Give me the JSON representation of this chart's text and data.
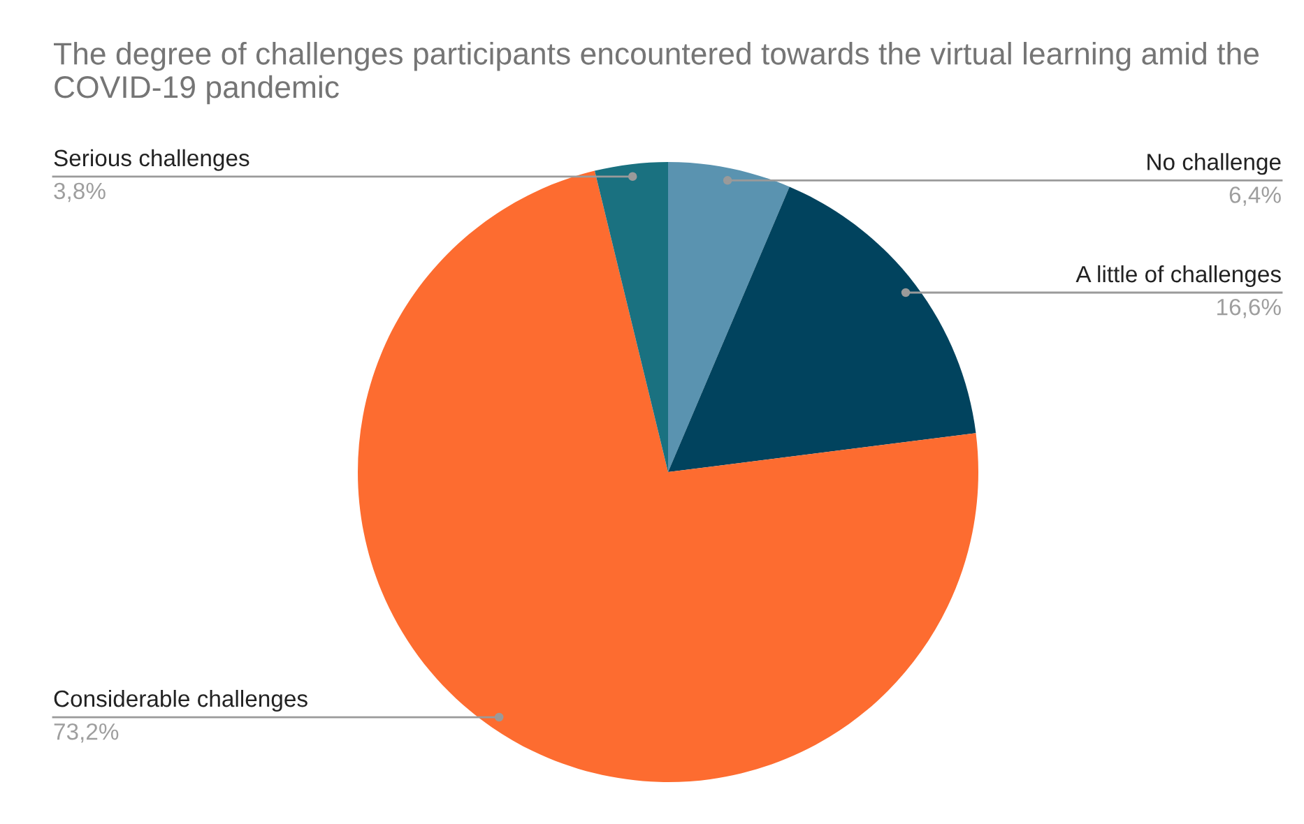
{
  "chart_data": {
    "type": "pie",
    "title": "The degree of challenges participants encountered towards the virtual learning amid the COVID-19 pandemic",
    "categories": [
      "No challenge",
      "A little of challenges",
      "Considerable challenges",
      "Serious challenges"
    ],
    "values": [
      6.4,
      16.6,
      73.2,
      3.8
    ],
    "value_labels": [
      "6,4%",
      "16,6%",
      "73,2%",
      "3,8%"
    ],
    "colors": [
      "#5a93b0",
      "#01435e",
      "#fd6c30",
      "#1a7180"
    ]
  }
}
